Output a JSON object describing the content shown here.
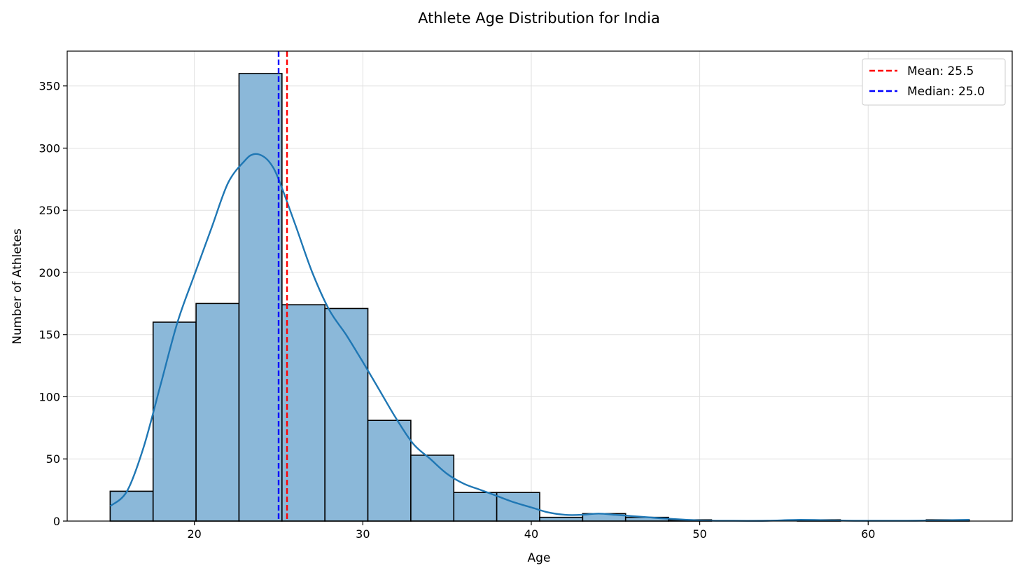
{
  "chart_data": {
    "type": "bar",
    "title": "Athlete Age Distribution for India",
    "xlabel": "Age",
    "ylabel": "Number of Athletes",
    "xlim": [
      12.45,
      68.55
    ],
    "ylim": [
      0,
      378
    ],
    "xticks": [
      20,
      30,
      40,
      50,
      60
    ],
    "yticks": [
      0,
      50,
      100,
      150,
      200,
      250,
      300,
      350
    ],
    "grid": true,
    "legend_position": "top-right",
    "bin_edges": [
      15,
      17.55,
      20.1,
      22.65,
      25.2,
      27.75,
      30.3,
      32.85,
      35.4,
      37.95,
      40.5,
      43.05,
      45.6,
      48.15,
      50.7,
      53.25,
      55.8,
      58.35,
      60.9,
      63.45,
      66
    ],
    "counts": [
      24,
      160,
      175,
      360,
      174,
      171,
      81,
      53,
      23,
      23,
      3,
      6,
      3,
      1,
      0,
      0,
      1,
      0,
      0,
      1
    ],
    "bar_fill": "#8bb8d9",
    "bar_edge": "#000000",
    "kde": {
      "color": "#1f77b4",
      "x": [
        15,
        16,
        17,
        18,
        19,
        20,
        21,
        22,
        23,
        23.5,
        24,
        24.5,
        25,
        26,
        27,
        28,
        29,
        30,
        31,
        32,
        33,
        34,
        35,
        36,
        37,
        38,
        39,
        40,
        41,
        42,
        43,
        44,
        45,
        46,
        47,
        48,
        50,
        52,
        54,
        56,
        58,
        60,
        62,
        64,
        66
      ],
      "y": [
        12,
        24,
        60,
        110,
        160,
        198,
        235,
        272,
        290,
        295,
        294,
        288,
        275,
        238,
        200,
        170,
        150,
        128,
        105,
        82,
        62,
        50,
        38,
        30,
        25,
        20,
        15,
        11,
        7,
        5,
        5,
        6,
        5,
        4,
        3,
        2,
        0.5,
        0.2,
        0.3,
        1,
        0.5,
        0.2,
        0.2,
        0.5,
        1
      ]
    },
    "reference_lines": [
      {
        "label": "Mean: 25.5",
        "value": 25.5,
        "color": "#ff0000"
      },
      {
        "label": "Median: 25.0",
        "value": 25.0,
        "color": "#0000ff"
      }
    ]
  }
}
